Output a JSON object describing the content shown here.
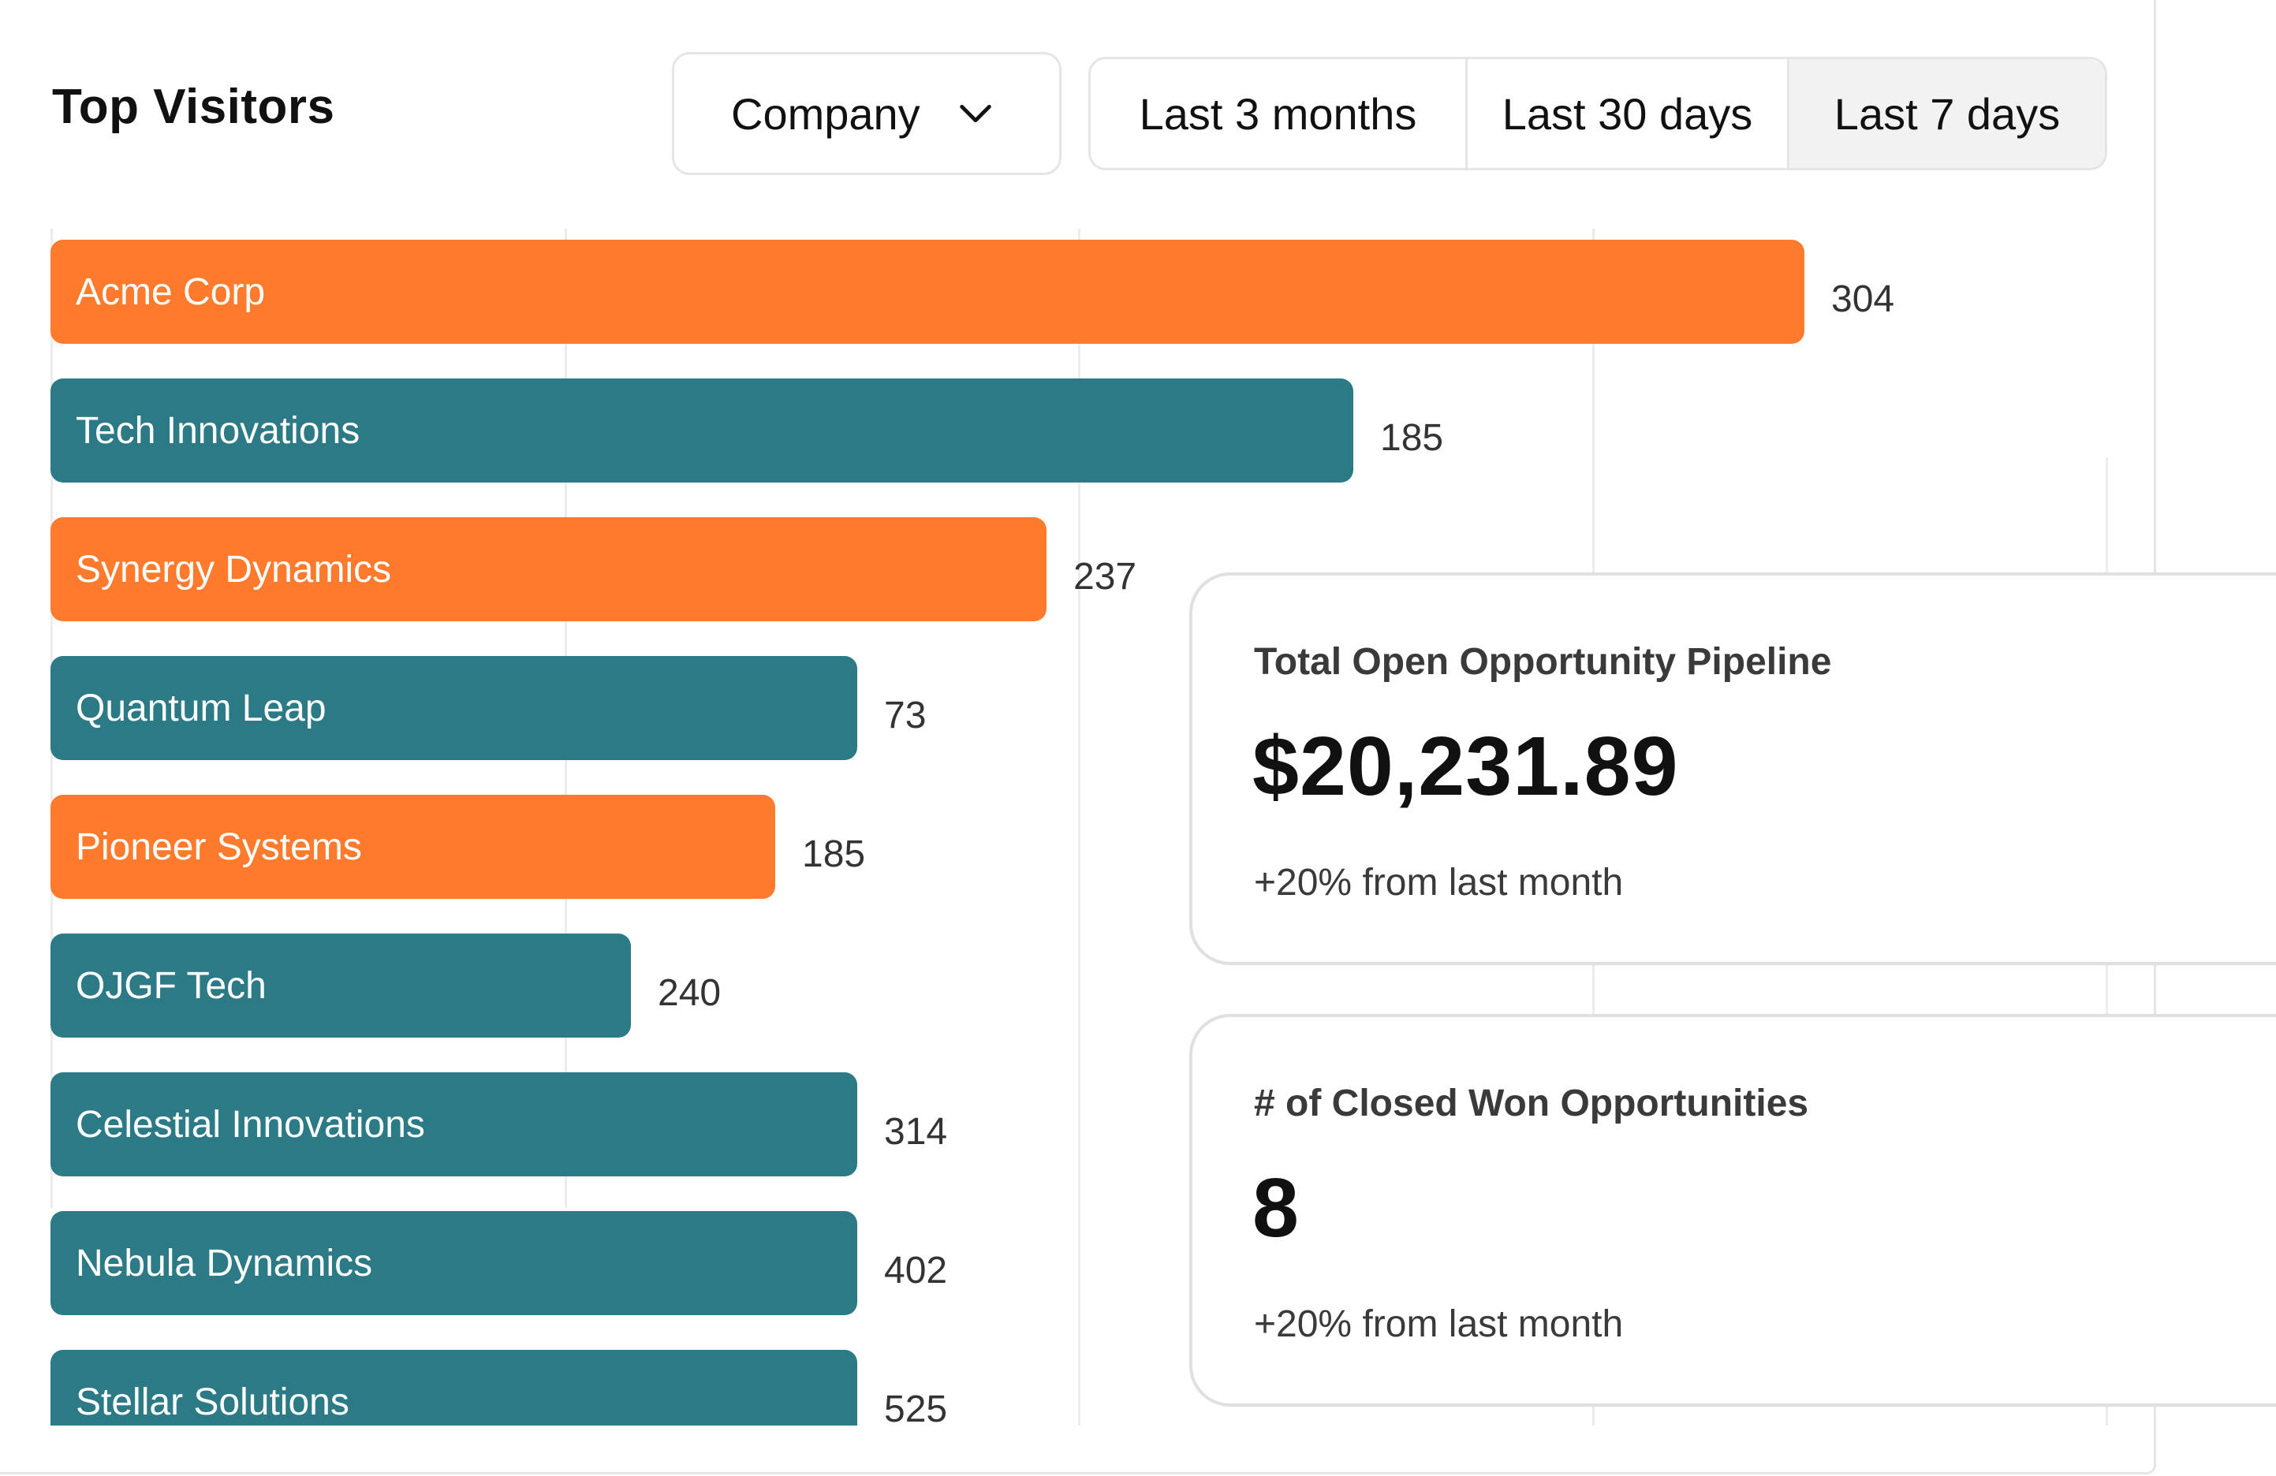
{
  "header": {
    "title": "Top Visitors",
    "group_by": {
      "label": "Company",
      "icon": "chevron-down-icon"
    },
    "ranges": [
      "Last 3 months",
      "Last 30 days",
      "Last 7 days"
    ],
    "selected_range": "Last 7 days"
  },
  "colors": {
    "orange": "#fe7b2e",
    "teal": "#2d7a87"
  },
  "bars": [
    {
      "label": "Acme Corp",
      "value": "304",
      "color": "orange",
      "fill": 1.0
    },
    {
      "label": "Tech Innovations",
      "value": "185",
      "color": "teal",
      "fill": 0.743
    },
    {
      "label": "Synergy Dynamics",
      "value": "237",
      "color": "orange",
      "fill": 0.568
    },
    {
      "label": "Quantum Leap",
      "value": "73",
      "color": "teal",
      "fill": 0.46
    },
    {
      "label": "Pioneer Systems",
      "value": "185",
      "color": "orange",
      "fill": 0.413
    },
    {
      "label": "OJGF Tech",
      "value": "240",
      "color": "teal",
      "fill": 0.331
    },
    {
      "label": "Celestial Innovations",
      "value": "314",
      "color": "teal",
      "fill": 0.46
    },
    {
      "label": "Nebula Dynamics",
      "value": "402",
      "color": "teal",
      "fill": 0.46
    },
    {
      "label": "Stellar Solutions",
      "value": "525",
      "color": "teal",
      "fill": 0.46
    }
  ],
  "cards": [
    {
      "label": "Total Open Opportunity Pipeline",
      "value": "$20,231.89",
      "change": "+20% from last month"
    },
    {
      "label": "# of Closed Won Opportunities",
      "value": "8",
      "change": "+20% from last month"
    }
  ]
}
